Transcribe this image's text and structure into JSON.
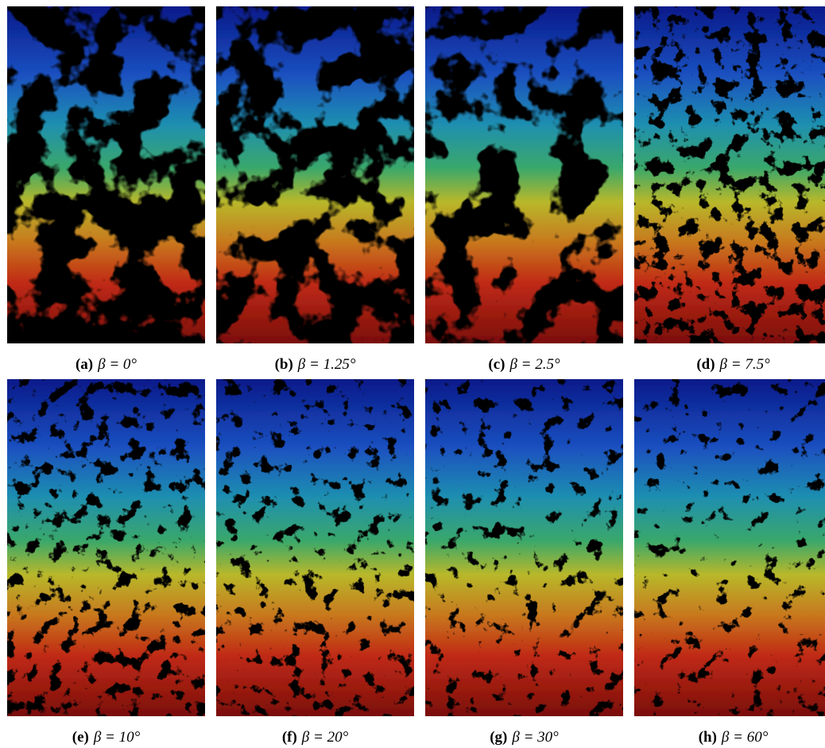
{
  "figure": {
    "panels": [
      {
        "label": "(a)",
        "caption": "β = 0°"
      },
      {
        "label": "(b)",
        "caption": "β = 1.25°"
      },
      {
        "label": "(c)",
        "caption": "β = 2.5°"
      },
      {
        "label": "(d)",
        "caption": "β = 7.5°"
      },
      {
        "label": "(e)",
        "caption": "β = 10°"
      },
      {
        "label": "(f)",
        "caption": "β = 20°"
      },
      {
        "label": "(g)",
        "caption": "β = 30°"
      },
      {
        "label": "(h)",
        "caption": "β = 60°"
      }
    ]
  }
}
